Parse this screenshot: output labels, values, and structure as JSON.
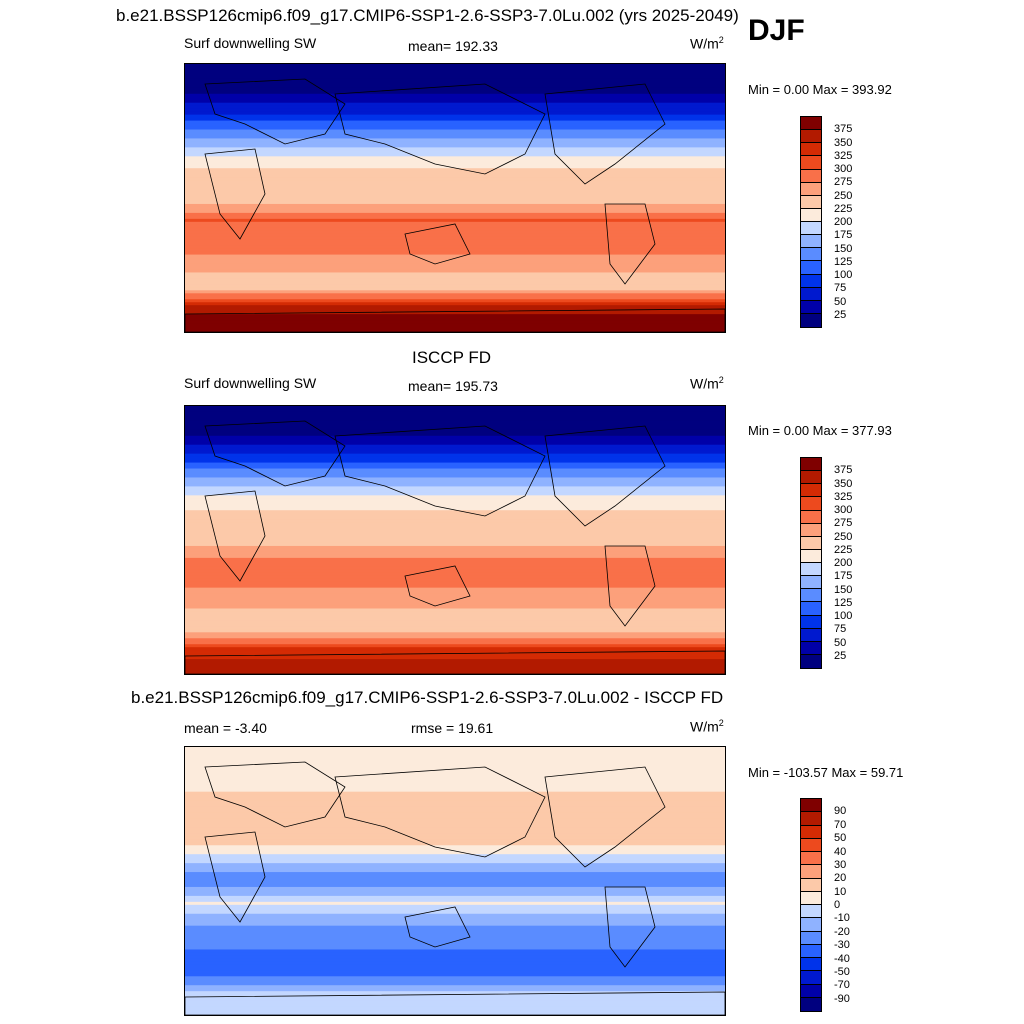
{
  "season": "DJF",
  "panels": [
    {
      "title": "b.e21.BSSP126cmip6.f09_g17.CMIP6-SSP1-2.6-SSP3-7.0Lu.002 (yrs 2025-2049)",
      "left_label": "Surf downwelling SW",
      "center_label": "mean= 192.33",
      "units": "W/m",
      "units_sup": "2",
      "minmax": "Min =   0.00 Max = 393.92"
    },
    {
      "title": "ISCCP FD",
      "left_label": "Surf downwelling SW",
      "center_label": "mean= 195.73",
      "units": "W/m",
      "units_sup": "2",
      "minmax": "Min =   0.00 Max = 377.93"
    },
    {
      "title": "b.e21.BSSP126cmip6.f09_g17.CMIP6-SSP1-2.6-SSP3-7.0Lu.002 - ISCCP FD",
      "left_label": "mean =  -3.40",
      "center_label": "rmse =  19.61",
      "units": "W/m",
      "units_sup": "2",
      "minmax": "Min = -103.57 Max =  59.71"
    }
  ],
  "chart_data": [
    {
      "type": "heatmap",
      "title": "b.e21.BSSP126cmip6.f09_g17.CMIP6-SSP1-2.6-SSP3-7.0Lu.002 (yrs 2025-2049)",
      "variable": "Surf downwelling SW",
      "units": "W/m2",
      "mean": 192.33,
      "min": 0.0,
      "max": 393.92,
      "colorbar_levels": [
        25,
        50,
        75,
        100,
        125,
        150,
        175,
        200,
        225,
        250,
        275,
        300,
        325,
        350,
        375
      ],
      "zonal_profile": {
        "lat": [
          90,
          75,
          60,
          45,
          30,
          15,
          0,
          -15,
          -30,
          -45,
          -60,
          -75,
          -90
        ],
        "value": [
          0,
          10,
          60,
          130,
          190,
          240,
          230,
          300,
          290,
          260,
          230,
          370,
          390
        ]
      }
    },
    {
      "type": "heatmap",
      "title": "ISCCP FD",
      "variable": "Surf downwelling SW",
      "units": "W/m2",
      "mean": 195.73,
      "min": 0.0,
      "max": 377.93,
      "colorbar_levels": [
        25,
        50,
        75,
        100,
        125,
        150,
        175,
        200,
        225,
        250,
        275,
        300,
        325,
        350,
        375
      ],
      "zonal_profile": {
        "lat": [
          90,
          75,
          60,
          45,
          30,
          15,
          0,
          -15,
          -30,
          -45,
          -60,
          -75,
          -90
        ],
        "value": [
          0,
          10,
          60,
          140,
          200,
          240,
          230,
          290,
          280,
          250,
          230,
          340,
          370
        ]
      }
    },
    {
      "type": "heatmap",
      "title": "b.e21.BSSP126cmip6.f09_g17.CMIP6-SSP1-2.6-SSP3-7.0Lu.002 - ISCCP FD",
      "variable": "Surf downwelling SW difference",
      "units": "W/m2",
      "mean": -3.4,
      "rmse": 19.61,
      "min": -103.57,
      "max": 59.71,
      "colorbar_levels": [
        -90,
        -70,
        -50,
        -40,
        -30,
        -20,
        -10,
        0,
        10,
        20,
        30,
        40,
        50,
        70,
        90
      ],
      "zonal_profile": {
        "lat": [
          90,
          75,
          60,
          45,
          30,
          15,
          0,
          -15,
          -30,
          -45,
          -60,
          -75,
          -90
        ],
        "value": [
          0,
          5,
          10,
          15,
          20,
          -5,
          -30,
          0,
          -20,
          -30,
          -40,
          -10,
          0
        ]
      }
    }
  ],
  "colors": {
    "abs_scale": [
      "#00007f",
      "#0000a8",
      "#0019cf",
      "#0033ea",
      "#2962ff",
      "#5a8cff",
      "#8fb2ff",
      "#c3d7ff",
      "#fcebdc",
      "#fcc9a9",
      "#fca07b",
      "#f97049",
      "#ed4a1e",
      "#d42b04",
      "#b21a00",
      "#7f0000"
    ],
    "diff_scale": [
      "#00007f",
      "#0000a8",
      "#0019cf",
      "#0033ea",
      "#2962ff",
      "#5a8cff",
      "#8fb2ff",
      "#c3d7ff",
      "#fcebdc",
      "#fcc9a9",
      "#fca07b",
      "#f97049",
      "#ed4a1e",
      "#d42b04",
      "#b21a00",
      "#7f0000"
    ]
  }
}
